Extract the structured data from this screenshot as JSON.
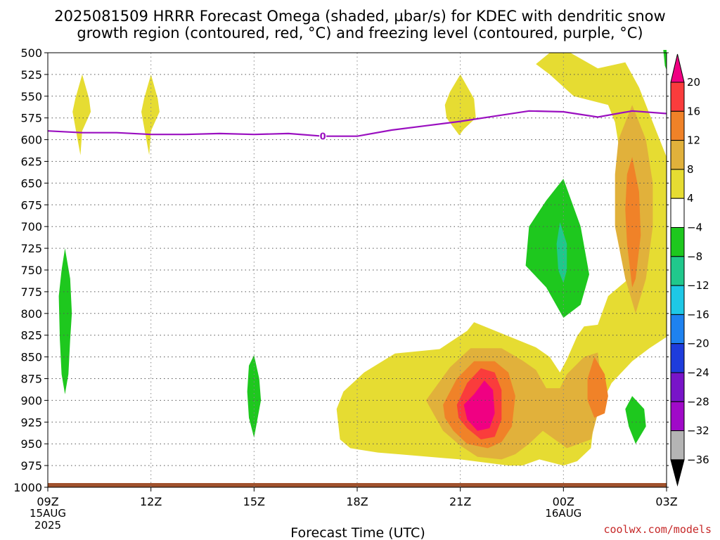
{
  "title": {
    "line1": "2025081509 HRRR Forecast Omega (shaded, µbar/s) for KDEC with dendritic snow",
    "line2": "growth region (contoured, red, °C) and freezing level (contoured, purple, °C)"
  },
  "credit": "coolwx.com/models",
  "colors": {
    "c4_8": "#e6dc32",
    "c8_12": "#e1b13b",
    "c12_16": "#f08228",
    "c16_20": "#fa3c3c",
    "c20p": "#f00082",
    "cm4_m8": "#1ec81e",
    "cm8_m12": "#20c88c",
    "freezing_line": "#9a0fc0",
    "ground": "#a0522d"
  },
  "chart_data": {
    "type": "heatmap",
    "title": "2025081509 HRRR Forecast Omega (shaded, µbar/s) for KDEC with dendritic snow growth region (contoured, red, °C) and freezing level (contoured, purple, °C)",
    "xlabel": "Forecast Time (UTC)",
    "ylabel": "",
    "x_unit": "forecast hour from 2025-08-15 09Z",
    "xlim": [
      0,
      18
    ],
    "ylim": [
      1000,
      500
    ],
    "y_scale": "linear, pressure (hPa) decreasing upward",
    "grid": true,
    "x_ticks": [
      {
        "value": 0,
        "label": "09Z",
        "sub": [
          "15AUG",
          "2025"
        ]
      },
      {
        "value": 3,
        "label": "12Z",
        "sub": []
      },
      {
        "value": 6,
        "label": "15Z",
        "sub": []
      },
      {
        "value": 9,
        "label": "18Z",
        "sub": []
      },
      {
        "value": 12,
        "label": "21Z",
        "sub": []
      },
      {
        "value": 15,
        "label": "00Z",
        "sub": [
          "16AUG"
        ]
      },
      {
        "value": 18,
        "label": "03Z",
        "sub": []
      }
    ],
    "y_ticks": [
      500,
      525,
      550,
      575,
      600,
      625,
      650,
      675,
      700,
      725,
      750,
      775,
      800,
      825,
      850,
      875,
      900,
      925,
      950,
      975,
      1000
    ],
    "colorbar": {
      "labels": [
        "20",
        "16",
        "12",
        "8",
        "4",
        "−4",
        "−8",
        "−12",
        "−16",
        "−20",
        "−24",
        "−28",
        "−32",
        "−36"
      ],
      "bins": [
        {
          "color": "#fa3c3c"
        },
        {
          "color": "#f08228"
        },
        {
          "color": "#e1b13b"
        },
        {
          "color": "#e6dc32"
        },
        {
          "color": "#ffffff"
        },
        {
          "color": "#1ec81e"
        },
        {
          "color": "#20c88c"
        },
        {
          "color": "#1ec8e6"
        },
        {
          "color": "#1e82f0"
        },
        {
          "color": "#1e3cdc"
        },
        {
          "color": "#7814c8"
        },
        {
          "color": "#a00ac8"
        },
        {
          "color": "#b4b4b4"
        }
      ],
      "top_triangle_color": "#f00082",
      "bottom_triangle_color": "#000000"
    },
    "freezing_level": {
      "label": "0",
      "label_at": {
        "t": 8.0
      },
      "points": [
        [
          0,
          590
        ],
        [
          1.0,
          592
        ],
        [
          2.0,
          592
        ],
        [
          3.0,
          594
        ],
        [
          4.0,
          594
        ],
        [
          5.0,
          593
        ],
        [
          6.0,
          594
        ],
        [
          7.0,
          593
        ],
        [
          8.0,
          596
        ],
        [
          9.0,
          596
        ],
        [
          10.0,
          589
        ],
        [
          11.0,
          584
        ],
        [
          12.0,
          579
        ],
        [
          13.0,
          573
        ],
        [
          14.0,
          567
        ],
        [
          15.0,
          568
        ],
        [
          16.0,
          574
        ],
        [
          17.0,
          567
        ],
        [
          18.0,
          570
        ]
      ]
    },
    "shaded_regions": [
      {
        "level": "c4_8",
        "points": [
          [
            14.6,
            500
          ],
          [
            15.2,
            500
          ],
          [
            16.0,
            518
          ],
          [
            16.8,
            511
          ],
          [
            17.2,
            540
          ],
          [
            17.7,
            590
          ],
          [
            18.0,
            620
          ],
          [
            18.0,
            827
          ],
          [
            17.5,
            840
          ],
          [
            17.0,
            855
          ],
          [
            16.4,
            880
          ],
          [
            15.9,
            920
          ],
          [
            15.8,
            955
          ],
          [
            15.4,
            970
          ],
          [
            15.0,
            975
          ],
          [
            14.3,
            968
          ],
          [
            13.8,
            975
          ],
          [
            13.4,
            975
          ],
          [
            12.0,
            968
          ],
          [
            10.2,
            962
          ],
          [
            9.6,
            960
          ],
          [
            8.8,
            955
          ],
          [
            8.5,
            945
          ],
          [
            8.4,
            910
          ],
          [
            8.6,
            890
          ],
          [
            9.2,
            868
          ],
          [
            10.1,
            846
          ],
          [
            11.4,
            841
          ],
          [
            12.2,
            820
          ],
          [
            12.4,
            810
          ],
          [
            14.2,
            839
          ],
          [
            14.6,
            850
          ],
          [
            14.9,
            868
          ],
          [
            15.1,
            853
          ],
          [
            15.4,
            826
          ],
          [
            15.6,
            815
          ],
          [
            16.0,
            813
          ],
          [
            16.3,
            780
          ],
          [
            16.9,
            760
          ],
          [
            16.9,
            680
          ],
          [
            16.5,
            580
          ],
          [
            16.3,
            560
          ],
          [
            15.3,
            550
          ],
          [
            14.6,
            525
          ],
          [
            14.2,
            513
          ]
        ]
      },
      {
        "level": "c4_8",
        "points": [
          [
            1.0,
            525
          ],
          [
            1.2,
            553
          ],
          [
            1.25,
            568
          ],
          [
            1.0,
            590
          ],
          [
            0.95,
            618
          ],
          [
            0.82,
            590
          ],
          [
            0.72,
            568
          ],
          [
            0.8,
            553
          ]
        ]
      },
      {
        "level": "c4_8",
        "points": [
          [
            3.0,
            525
          ],
          [
            3.2,
            553
          ],
          [
            3.25,
            568
          ],
          [
            3.0,
            590
          ],
          [
            2.95,
            618
          ],
          [
            2.82,
            590
          ],
          [
            2.72,
            568
          ],
          [
            2.8,
            553
          ]
        ]
      },
      {
        "level": "c4_8",
        "points": [
          [
            12.0,
            525
          ],
          [
            12.4,
            553
          ],
          [
            12.45,
            575
          ],
          [
            12.1,
            588
          ],
          [
            11.97,
            595
          ],
          [
            11.6,
            575
          ],
          [
            11.55,
            560
          ],
          [
            11.7,
            545
          ]
        ]
      },
      {
        "level": "c8_12",
        "points": [
          [
            11.0,
            900
          ],
          [
            11.7,
            862
          ],
          [
            12.3,
            840
          ],
          [
            13.2,
            840
          ],
          [
            13.8,
            854
          ],
          [
            14.2,
            865
          ],
          [
            14.5,
            886
          ],
          [
            14.9,
            886
          ],
          [
            15.1,
            870
          ],
          [
            15.6,
            850
          ],
          [
            16.0,
            845
          ],
          [
            16.1,
            876
          ],
          [
            16.0,
            915
          ],
          [
            15.8,
            945
          ],
          [
            15.1,
            955
          ],
          [
            14.4,
            935
          ],
          [
            14.0,
            950
          ],
          [
            13.6,
            962
          ],
          [
            13.2,
            968
          ],
          [
            12.5,
            965
          ],
          [
            12.0,
            952
          ],
          [
            11.5,
            935
          ]
        ]
      },
      {
        "level": "c8_12",
        "points": [
          [
            17.0,
            560
          ],
          [
            17.4,
            600
          ],
          [
            17.6,
            650
          ],
          [
            17.6,
            700
          ],
          [
            17.4,
            760
          ],
          [
            17.1,
            800
          ],
          [
            16.8,
            760
          ],
          [
            16.5,
            700
          ],
          [
            16.5,
            640
          ],
          [
            16.6,
            600
          ]
        ]
      },
      {
        "level": "c12_16",
        "points": [
          [
            11.5,
            905
          ],
          [
            11.9,
            875
          ],
          [
            12.4,
            855
          ],
          [
            13.0,
            855
          ],
          [
            13.4,
            868
          ],
          [
            13.6,
            895
          ],
          [
            13.5,
            930
          ],
          [
            13.2,
            948
          ],
          [
            12.8,
            955
          ],
          [
            12.2,
            950
          ],
          [
            11.8,
            935
          ],
          [
            11.55,
            920
          ]
        ]
      },
      {
        "level": "c12_16",
        "points": [
          [
            17.0,
            620
          ],
          [
            17.2,
            660
          ],
          [
            17.25,
            710
          ],
          [
            17.1,
            760
          ],
          [
            17.0,
            770
          ],
          [
            16.85,
            720
          ],
          [
            16.8,
            680
          ],
          [
            16.85,
            640
          ]
        ]
      },
      {
        "level": "c12_16",
        "points": [
          [
            15.9,
            850
          ],
          [
            16.2,
            870
          ],
          [
            16.3,
            895
          ],
          [
            16.2,
            915
          ],
          [
            15.9,
            920
          ],
          [
            15.7,
            900
          ],
          [
            15.7,
            875
          ]
        ]
      },
      {
        "level": "c16_20",
        "points": [
          [
            11.9,
            905
          ],
          [
            12.2,
            880
          ],
          [
            12.6,
            863
          ],
          [
            13.0,
            868
          ],
          [
            13.2,
            888
          ],
          [
            13.2,
            922
          ],
          [
            13.0,
            942
          ],
          [
            12.6,
            945
          ],
          [
            12.2,
            932
          ],
          [
            11.95,
            920
          ]
        ]
      },
      {
        "level": "c20p",
        "points": [
          [
            12.1,
            905
          ],
          [
            12.4,
            893
          ],
          [
            12.7,
            877
          ],
          [
            12.95,
            888
          ],
          [
            13.0,
            915
          ],
          [
            12.85,
            932
          ],
          [
            12.5,
            935
          ],
          [
            12.2,
            922
          ]
        ]
      },
      {
        "level": "cm4_m8",
        "points": [
          [
            0.5,
            725
          ],
          [
            0.65,
            760
          ],
          [
            0.7,
            800
          ],
          [
            0.65,
            830
          ],
          [
            0.6,
            870
          ],
          [
            0.5,
            893
          ],
          [
            0.4,
            870
          ],
          [
            0.35,
            830
          ],
          [
            0.32,
            780
          ],
          [
            0.4,
            750
          ]
        ]
      },
      {
        "level": "cm4_m8",
        "points": [
          [
            6.0,
            848
          ],
          [
            6.15,
            875
          ],
          [
            6.2,
            900
          ],
          [
            6.0,
            943
          ],
          [
            5.85,
            920
          ],
          [
            5.8,
            890
          ],
          [
            5.85,
            860
          ]
        ]
      },
      {
        "level": "cm4_m8",
        "points": [
          [
            15.0,
            645
          ],
          [
            15.5,
            700
          ],
          [
            15.75,
            755
          ],
          [
            15.5,
            790
          ],
          [
            15.0,
            805
          ],
          [
            14.5,
            770
          ],
          [
            13.9,
            745
          ],
          [
            14.0,
            700
          ],
          [
            14.5,
            670
          ]
        ]
      },
      {
        "level": "cm4_m8",
        "points": [
          [
            17.0,
            895
          ],
          [
            17.35,
            910
          ],
          [
            17.4,
            930
          ],
          [
            17.1,
            950
          ],
          [
            16.9,
            930
          ],
          [
            16.8,
            910
          ]
        ]
      },
      {
        "level": "cm8_m12",
        "points": [
          [
            14.9,
            695
          ],
          [
            15.1,
            720
          ],
          [
            15.1,
            750
          ],
          [
            15.0,
            765
          ],
          [
            14.85,
            750
          ],
          [
            14.8,
            720
          ]
        ]
      },
      {
        "level": "cm4_m8",
        "points": [
          [
            17.9,
            495
          ],
          [
            18.0,
            495
          ],
          [
            18.0,
            520
          ],
          [
            17.95,
            515
          ]
        ]
      }
    ]
  }
}
